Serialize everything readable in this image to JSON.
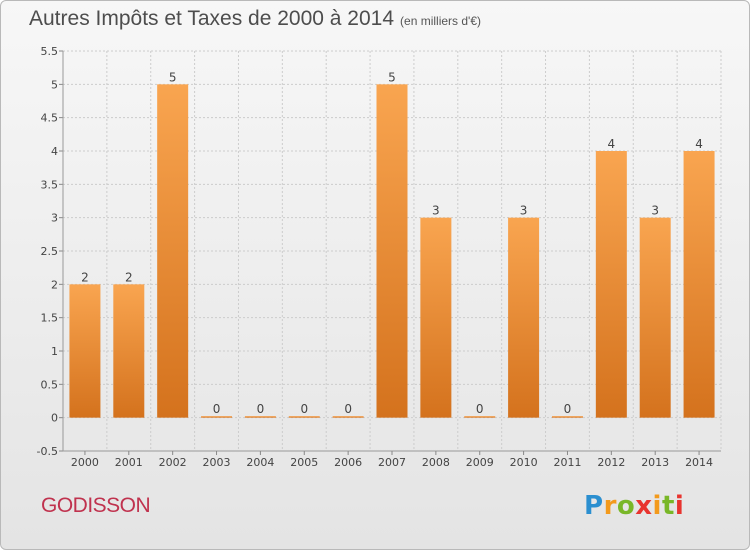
{
  "header": {
    "title": "Autres Impôts et Taxes de 2000 à 2014",
    "subtitle": "(en milliers d'€)"
  },
  "footer": {
    "commune": "GODISSON",
    "logo_text": "Proxiti"
  },
  "colors": {
    "bar_light": "#f9a550",
    "bar_dark": "#d4721d",
    "grid": "#cccccc",
    "commune": "#c0324e"
  },
  "chart_data": {
    "type": "bar",
    "categories": [
      "2000",
      "2001",
      "2002",
      "2003",
      "2004",
      "2005",
      "2006",
      "2007",
      "2008",
      "2009",
      "2010",
      "2011",
      "2012",
      "2013",
      "2014"
    ],
    "values": [
      2,
      2,
      5,
      0,
      0,
      0,
      0,
      5,
      3,
      0,
      3,
      0,
      4,
      3,
      4
    ],
    "data_labels": [
      "2",
      "2",
      "5",
      "0",
      "0",
      "0",
      "0",
      "5",
      "3",
      "0",
      "3",
      "0",
      "4",
      "3",
      "4"
    ],
    "yticks": [
      "-0.5",
      "0",
      "0.5",
      "1",
      "1.5",
      "2",
      "2.5",
      "3",
      "3.5",
      "4",
      "4.5",
      "5",
      "5.5"
    ],
    "ylim": [
      -0.5,
      5.5
    ],
    "grid": true,
    "xlabel": "",
    "ylabel": ""
  }
}
